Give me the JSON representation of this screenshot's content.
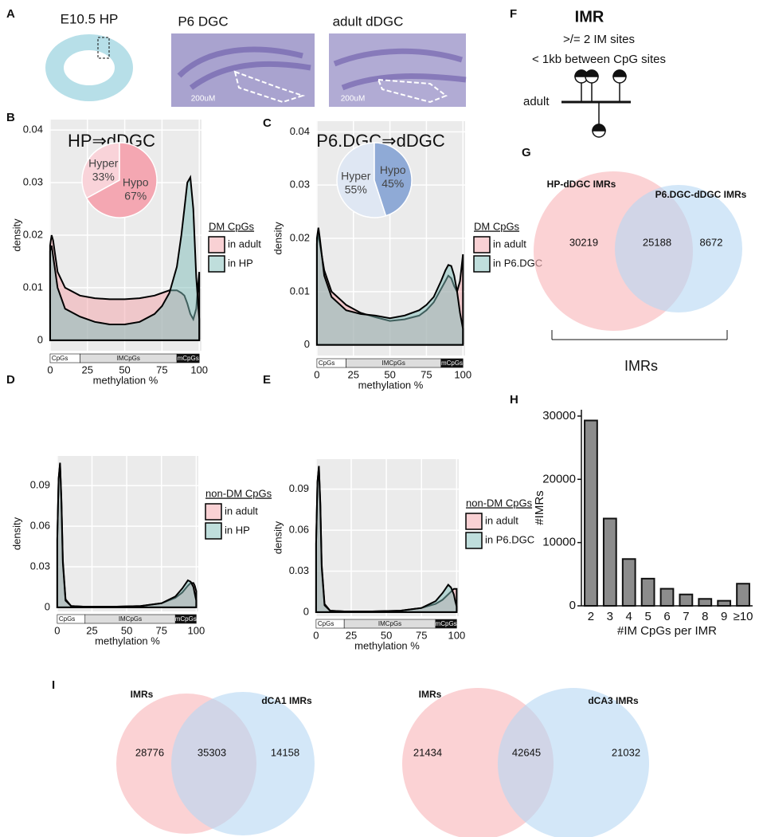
{
  "panel_letters": [
    "A",
    "B",
    "C",
    "D",
    "E",
    "F",
    "G",
    "H",
    "I"
  ],
  "panel_a": {
    "images": [
      "E10.5 HP",
      "P6 DGC",
      "adult dDGC"
    ],
    "scale_bars": [
      "200uM",
      "200uM"
    ]
  },
  "panel_f": {
    "title": "IMR",
    "lines": [
      ">/= 2 IM sites",
      "< 1kb between CpG sites"
    ],
    "label": "adult"
  },
  "chart_data": [
    {
      "type": "density",
      "title": "HP⇒dDGC",
      "xlabel": "methylation %",
      "ylabel": "density",
      "x": [
        0,
        1,
        2,
        5,
        10,
        20,
        30,
        40,
        50,
        60,
        70,
        75,
        80,
        85,
        88,
        90,
        92,
        94,
        96,
        98,
        100
      ],
      "xlim": [
        -0.5,
        101.5
      ],
      "xticks": [
        0,
        25,
        50,
        75,
        100
      ],
      "ylim": [
        -0.002,
        0.042
      ],
      "yticks": [
        0,
        0.01,
        0.02,
        0.03,
        0.04
      ],
      "grid": true,
      "legend_title": "DM CpGs",
      "legend": "right",
      "bands": [
        {
          "label": "CpGs",
          "range": [
            0,
            20
          ]
        },
        {
          "label": "IMCpGs",
          "range": [
            20,
            85
          ]
        },
        {
          "label": "mCpGs",
          "range": [
            85,
            100
          ]
        }
      ],
      "series": [
        {
          "name": "in adult",
          "color": "#f4a3aa",
          "values": [
            0.018,
            0.02,
            0.019,
            0.013,
            0.01,
            0.0085,
            0.008,
            0.0078,
            0.0078,
            0.008,
            0.0085,
            0.009,
            0.0095,
            0.0095,
            0.009,
            0.0085,
            0.007,
            0.005,
            0.004,
            0.006,
            0.013
          ]
        },
        {
          "name": "in HP",
          "color": "#7fbdb9",
          "values": [
            0.017,
            0.018,
            0.016,
            0.01,
            0.006,
            0.0045,
            0.0035,
            0.003,
            0.003,
            0.0035,
            0.005,
            0.0065,
            0.009,
            0.014,
            0.02,
            0.025,
            0.03,
            0.031,
            0.025,
            0.012,
            0.004
          ]
        }
      ]
    },
    {
      "type": "pie",
      "categories": [
        "Hyper",
        "Hypo"
      ],
      "values": [
        33,
        67
      ],
      "value_labels": [
        "33%",
        "67%"
      ],
      "colors": [
        "#f9d3d9",
        "#f4a7b2"
      ]
    },
    {
      "type": "density",
      "title": "P6.DGC⇒dDGC",
      "xlabel": "methylation %",
      "ylabel": "density",
      "x": [
        0,
        1,
        2,
        5,
        10,
        20,
        30,
        40,
        50,
        60,
        70,
        75,
        80,
        85,
        88,
        90,
        92,
        94,
        96,
        98,
        100
      ],
      "xlim": [
        -0.5,
        101.5
      ],
      "xticks": [
        0,
        25,
        50,
        75,
        100
      ],
      "ylim": [
        -0.002,
        0.042
      ],
      "yticks": [
        0,
        0.01,
        0.02,
        0.03,
        0.04
      ],
      "grid": true,
      "legend_title": "DM CpGs",
      "legend": "right",
      "bands": [
        {
          "label": "CpGs",
          "range": [
            0,
            20
          ]
        },
        {
          "label": "IMCpGs",
          "range": [
            20,
            85
          ]
        },
        {
          "label": "mCpGs",
          "range": [
            85,
            100
          ]
        }
      ],
      "series": [
        {
          "name": "in adult",
          "color": "#f4a3aa",
          "values": [
            0.019,
            0.021,
            0.019,
            0.014,
            0.01,
            0.0075,
            0.006,
            0.0052,
            0.0045,
            0.0048,
            0.0055,
            0.0065,
            0.008,
            0.0105,
            0.012,
            0.013,
            0.0125,
            0.011,
            0.01,
            0.012,
            0.017
          ]
        },
        {
          "name": "in P6.DGC",
          "color": "#7fbdb9",
          "values": [
            0.02,
            0.022,
            0.02,
            0.013,
            0.009,
            0.0065,
            0.0058,
            0.0055,
            0.005,
            0.0055,
            0.0065,
            0.0075,
            0.009,
            0.012,
            0.014,
            0.015,
            0.0148,
            0.013,
            0.01,
            0.006,
            0.003
          ]
        }
      ]
    },
    {
      "type": "pie",
      "categories": [
        "Hyper",
        "Hypo"
      ],
      "values": [
        55,
        45
      ],
      "value_labels": [
        "55%",
        "45%"
      ],
      "colors": [
        "#dfe7f3",
        "#8faad6"
      ]
    },
    {
      "type": "density",
      "xlabel": "methylation %",
      "ylabel": "density",
      "x": [
        0,
        1,
        2,
        3,
        4,
        6,
        10,
        20,
        40,
        60,
        75,
        85,
        90,
        94,
        96,
        98,
        99,
        100
      ],
      "xlim": [
        -0.5,
        101.5
      ],
      "xticks": [
        0,
        25,
        50,
        75,
        100
      ],
      "ylim": [
        -0.003,
        0.112
      ],
      "yticks": [
        0,
        0.03,
        0.06,
        0.09
      ],
      "grid": true,
      "legend_title": "non-DM CpGs",
      "legend": "right",
      "bands": [
        {
          "label": "CpGs",
          "range": [
            0,
            20
          ]
        },
        {
          "label": "IMCpGs",
          "range": [
            20,
            85
          ]
        },
        {
          "label": "mCpGs",
          "range": [
            85,
            100
          ]
        }
      ],
      "series": [
        {
          "name": "in adult",
          "color": "#f4a3aa",
          "values": [
            0.05,
            0.095,
            0.107,
            0.08,
            0.035,
            0.006,
            0.001,
            0.0005,
            0.0005,
            0.001,
            0.003,
            0.007,
            0.011,
            0.016,
            0.018,
            0.018,
            0.016,
            0.012
          ]
        },
        {
          "name": "in HP",
          "color": "#7fbdb9",
          "values": [
            0.05,
            0.095,
            0.106,
            0.078,
            0.033,
            0.005,
            0.001,
            0.0005,
            0.0005,
            0.001,
            0.003,
            0.008,
            0.014,
            0.02,
            0.019,
            0.015,
            0.01,
            0.005
          ]
        }
      ]
    },
    {
      "type": "density",
      "xlabel": "methylation %",
      "ylabel": "density",
      "x": [
        0,
        1,
        2,
        3,
        4,
        6,
        10,
        20,
        40,
        60,
        75,
        85,
        90,
        94,
        96,
        98,
        99,
        100
      ],
      "xlim": [
        -0.5,
        101.5
      ],
      "xticks": [
        0,
        25,
        50,
        75,
        100
      ],
      "ylim": [
        -0.003,
        0.112
      ],
      "yticks": [
        0,
        0.03,
        0.06,
        0.09
      ],
      "grid": true,
      "legend_title": "non-DM CpGs",
      "legend": "right",
      "bands": [
        {
          "label": "CpGs",
          "range": [
            0,
            20
          ]
        },
        {
          "label": "IMCpGs",
          "range": [
            20,
            85
          ]
        },
        {
          "label": "mCpGs",
          "range": [
            85,
            100
          ]
        }
      ],
      "series": [
        {
          "name": "in adult",
          "color": "#f4a3aa",
          "values": [
            0.05,
            0.095,
            0.107,
            0.08,
            0.035,
            0.006,
            0.001,
            0.0005,
            0.0005,
            0.001,
            0.003,
            0.006,
            0.009,
            0.013,
            0.015,
            0.017,
            0.017,
            0.017
          ]
        },
        {
          "name": "in P6.DGC",
          "color": "#7fbdb9",
          "values": [
            0.05,
            0.095,
            0.106,
            0.078,
            0.033,
            0.005,
            0.001,
            0.0005,
            0.0005,
            0.001,
            0.003,
            0.008,
            0.014,
            0.02,
            0.018,
            0.013,
            0.008,
            0.004
          ]
        }
      ]
    },
    {
      "type": "venn",
      "set_labels": [
        "HP-dDGC IMRs",
        "P6.DGC-dDGC IMRs"
      ],
      "values": [
        30219,
        25188,
        8672
      ],
      "colors": [
        "#f8b4b8",
        "#b5d7f3"
      ],
      "footer": "IMRs"
    },
    {
      "type": "bar",
      "xlabel": "#IM CpGs per IMR",
      "ylabel": "#IMRs",
      "categories": [
        "2",
        "3",
        "4",
        "5",
        "6",
        "7",
        "8",
        "9",
        "≥10"
      ],
      "values": [
        29300,
        13800,
        7400,
        4300,
        2700,
        1800,
        1100,
        800,
        3500
      ],
      "color": "#8c8c8c",
      "ylim": [
        0,
        31000
      ],
      "yticks": [
        0,
        10000,
        20000,
        30000
      ]
    },
    {
      "type": "venn",
      "set_labels": [
        "IMRs",
        "dCA1 IMRs"
      ],
      "values": [
        28776,
        35303,
        14158
      ],
      "colors": [
        "#f8b4b8",
        "#b5d7f3"
      ]
    },
    {
      "type": "venn",
      "set_labels": [
        "IMRs",
        "dCA3 IMRs"
      ],
      "values": [
        21434,
        42645,
        21032
      ],
      "colors": [
        "#f8b4b8",
        "#b5d7f3"
      ]
    }
  ]
}
